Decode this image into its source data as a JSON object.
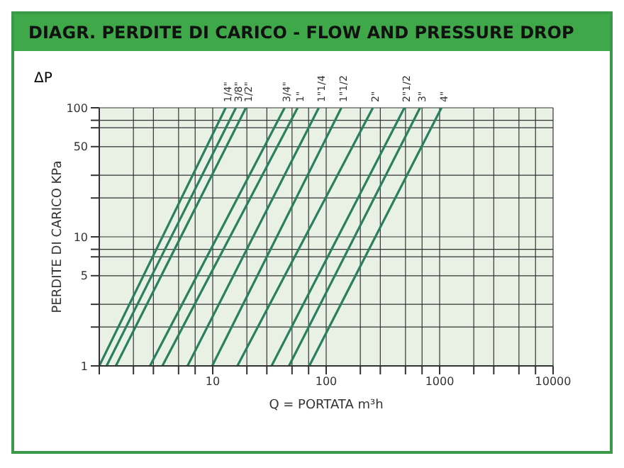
{
  "chart_data": {
    "type": "line",
    "title": "DIAGR. PERDITE DI CARICO - FLOW AND PRESSURE DROP",
    "xlabel": "Q = PORTATA m³h",
    "ylabel": "PERDITE DI CARICO KPa",
    "annotations": [
      "ΔP"
    ],
    "log": "xy",
    "grid": true,
    "legend": false,
    "marker": "none",
    "line_style": "solid",
    "xlim": [
      1,
      10000
    ],
    "xticks": [
      {
        "value": 1,
        "label": null
      },
      {
        "value": 2,
        "label": null
      },
      {
        "value": 3,
        "label": null
      },
      {
        "value": 5,
        "label": null
      },
      {
        "value": 7,
        "label": null
      },
      10,
      {
        "value": 20,
        "label": null
      },
      {
        "value": 30,
        "label": null
      },
      {
        "value": 50,
        "label": null
      },
      {
        "value": 70,
        "label": null
      },
      100,
      {
        "value": 200,
        "label": null
      },
      {
        "value": 300,
        "label": null
      },
      {
        "value": 500,
        "label": null
      },
      {
        "value": 700,
        "label": null
      },
      1000,
      {
        "value": 2000,
        "label": null
      },
      {
        "value": 3000,
        "label": null
      },
      {
        "value": 5000,
        "label": null
      },
      {
        "value": 7000,
        "label": null
      },
      10000
    ],
    "ylim": [
      1,
      100
    ],
    "yticks": [
      1,
      {
        "value": 2,
        "label": null
      },
      {
        "value": 3,
        "label": null
      },
      5,
      {
        "value": 7,
        "label": null
      },
      {
        "value": 8,
        "label": null
      },
      10,
      {
        "value": 20,
        "label": null
      },
      {
        "value": 30,
        "label": null
      },
      50,
      {
        "value": 70,
        "label": null
      },
      {
        "value": 80,
        "label": null
      },
      100
    ],
    "series": [
      {
        "name": "1/4\"",
        "color": "#2a7f5f",
        "x": [
          1.0,
          13
        ],
        "values": [
          1,
          100
        ]
      },
      {
        "name": "3/8\"",
        "color": "#2a7f5f",
        "x": [
          1.16,
          16
        ],
        "values": [
          1,
          100
        ]
      },
      {
        "name": "1/2\"",
        "color": "#2a7f5f",
        "x": [
          1.4,
          19.6
        ],
        "values": [
          1,
          100
        ]
      },
      {
        "name": "3/4\"",
        "color": "#2a7f5f",
        "x": [
          2.8,
          43
        ],
        "values": [
          1,
          100
        ]
      },
      {
        "name": "1\"",
        "color": "#2a7f5f",
        "x": [
          3.6,
          56
        ],
        "values": [
          1,
          100
        ]
      },
      {
        "name": "1\"1/4",
        "color": "#2a7f5f",
        "x": [
          6,
          86
        ],
        "values": [
          1,
          100
        ]
      },
      {
        "name": "1\"1/2",
        "color": "#2a7f5f",
        "x": [
          9.9,
          136
        ],
        "values": [
          1,
          100
        ]
      },
      {
        "name": "2\"",
        "color": "#2a7f5f",
        "x": [
          16.5,
          258
        ],
        "values": [
          1,
          100
        ]
      },
      {
        "name": "2\"1/2",
        "color": "#2a7f5f",
        "x": [
          33,
          489
        ],
        "values": [
          1,
          100
        ]
      },
      {
        "name": "3\"",
        "color": "#2a7f5f",
        "x": [
          47,
          672
        ],
        "values": [
          1,
          100
        ]
      },
      {
        "name": "4\"",
        "color": "#2a7f5f",
        "x": [
          71,
          1038
        ],
        "values": [
          1,
          100
        ]
      }
    ]
  }
}
